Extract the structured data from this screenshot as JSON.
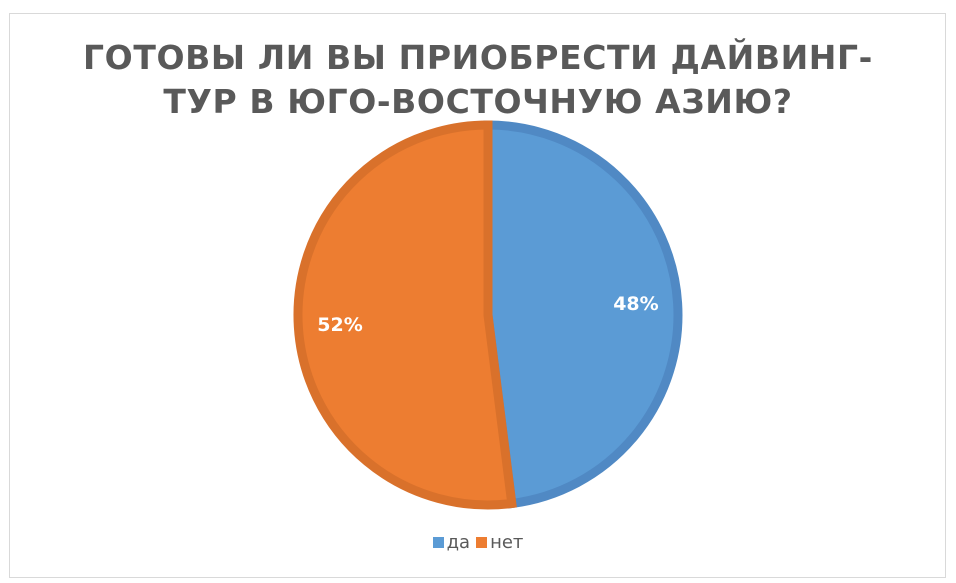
{
  "chart_data": {
    "type": "pie",
    "title_lines": [
      "ГОТОВЫ ЛИ ВЫ ПРИОБРЕСТИ ДАЙВИНГ-",
      "ТУР В ЮГО-ВОСТОЧНУЮ АЗИЮ?"
    ],
    "categories": [
      "да",
      "нет"
    ],
    "values": [
      48,
      52
    ],
    "labels": [
      "48%",
      "52%"
    ],
    "colors": [
      "#5B9BD5",
      "#ED7D31"
    ],
    "border_colors": [
      "#5089C4",
      "#D9712B"
    ],
    "legend_position": "bottom"
  }
}
